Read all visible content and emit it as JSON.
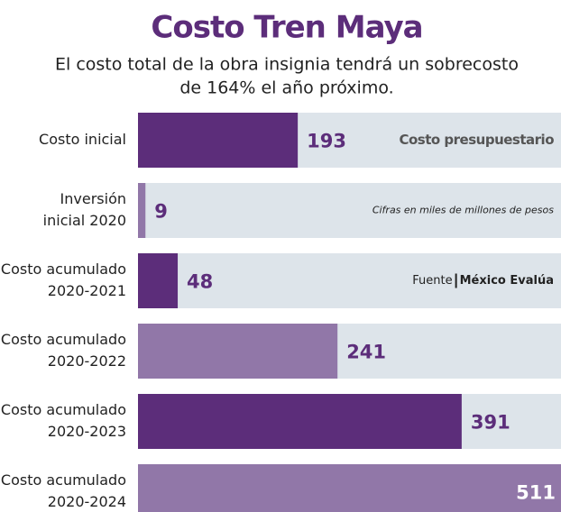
{
  "chart_data": {
    "type": "barh",
    "title": "Costo Tren Maya",
    "subtitle": [
      "El costo total de la obra insignia tendrá un sobrecosto",
      "de 164% el año próximo."
    ],
    "categories": [
      [
        "Costo inicial"
      ],
      [
        "Inversión",
        "inicial 2020"
      ],
      [
        "Costo acumulado",
        "2020-2021"
      ],
      [
        "Costo acumulado",
        "2020-2022"
      ],
      [
        "Costo acumulado",
        "2020-2023"
      ],
      [
        "Costo acumulado",
        "2020-2024"
      ]
    ],
    "values": [
      193,
      9,
      48,
      241,
      391,
      511
    ],
    "colors": [
      "#5c2d7a",
      "#9177a8",
      "#5c2d7a",
      "#9177a8",
      "#5c2d7a",
      "#9177a8"
    ],
    "xlim": [
      0,
      511
    ],
    "annotations": [
      "Costo presupuestario",
      "Cifras en miles de millones de pesos"
    ],
    "source_label": "Fuente",
    "source": "México Evalúa"
  }
}
